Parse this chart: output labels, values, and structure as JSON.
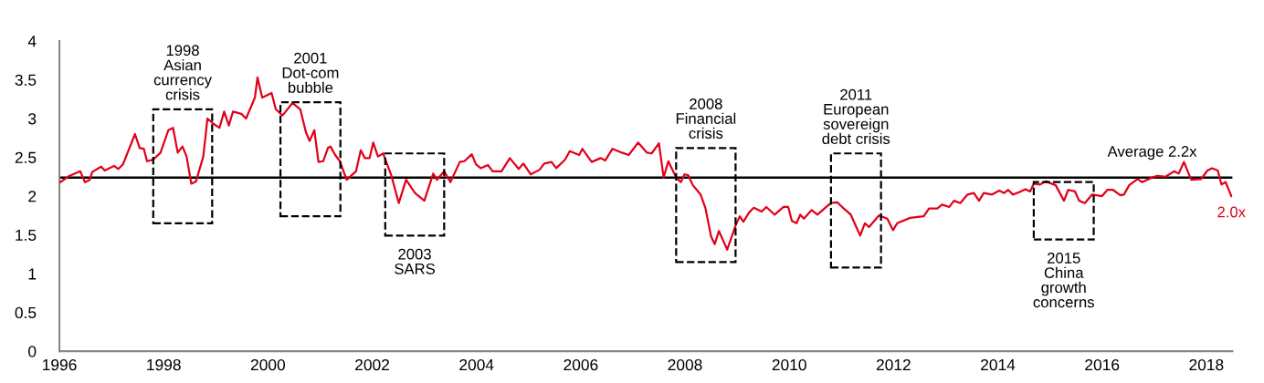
{
  "chart_data": {
    "type": "line",
    "x": [
      1996.02,
      1996.19,
      1996.4,
      1996.49,
      1996.58,
      1996.63,
      1996.8,
      1996.87,
      1997.05,
      1997.13,
      1997.22,
      1997.45,
      1997.54,
      1997.62,
      1997.68,
      1997.8,
      1997.94,
      1998.09,
      1998.18,
      1998.27,
      1998.36,
      1998.44,
      1998.53,
      1998.62,
      1998.76,
      1998.84,
      1998.98,
      1999.07,
      1999.16,
      1999.25,
      1999.33,
      1999.49,
      1999.58,
      1999.75,
      1999.8,
      1999.89,
      2000.07,
      2000.15,
      2000.28,
      2000.47,
      2000.62,
      2000.73,
      2000.8,
      2000.89,
      2000.97,
      2001.06,
      2001.15,
      2001.2,
      2001.29,
      2001.38,
      2001.51,
      2001.69,
      2001.78,
      2001.86,
      2001.95,
      2002.02,
      2002.11,
      2002.21,
      2002.37,
      2002.51,
      2002.65,
      2002.82,
      2003.0,
      2003.17,
      2003.24,
      2003.38,
      2003.5,
      2003.68,
      2003.77,
      2003.91,
      2003.99,
      2004.08,
      2004.22,
      2004.31,
      2004.48,
      2004.64,
      2004.81,
      2004.9,
      2005.04,
      2005.21,
      2005.3,
      2005.44,
      2005.53,
      2005.7,
      2005.79,
      2005.97,
      2006.03,
      2006.21,
      2006.38,
      2006.47,
      2006.61,
      2006.79,
      2006.92,
      2007.1,
      2007.27,
      2007.36,
      2007.5,
      2007.59,
      2007.68,
      2007.83,
      2007.92,
      2007.99,
      2008.06,
      2008.15,
      2008.3,
      2008.39,
      2008.5,
      2008.57,
      2008.65,
      2008.81,
      2008.97,
      2009.05,
      2009.12,
      2009.23,
      2009.32,
      2009.47,
      2009.56,
      2009.72,
      2009.89,
      2009.98,
      2010.05,
      2010.14,
      2010.21,
      2010.28,
      2010.43,
      2010.54,
      2010.71,
      2010.8,
      2010.92,
      2011.03,
      2011.18,
      2011.36,
      2011.45,
      2011.53,
      2011.72,
      2011.88,
      2011.99,
      2012.07,
      2012.32,
      2012.58,
      2012.68,
      2012.84,
      2012.93,
      2013.07,
      2013.16,
      2013.28,
      2013.42,
      2013.54,
      2013.64,
      2013.73,
      2013.89,
      2014.03,
      2014.12,
      2014.2,
      2014.29,
      2014.41,
      2014.53,
      2014.62,
      2014.69,
      2014.81,
      2014.92,
      2015.11,
      2015.27,
      2015.35,
      2015.48,
      2015.56,
      2015.67,
      2015.81,
      2016.0,
      2016.1,
      2016.21,
      2016.35,
      2016.42,
      2016.52,
      2016.68,
      2016.77,
      2016.96,
      2017.06,
      2017.22,
      2017.38,
      2017.47,
      2017.57,
      2017.71,
      2017.9,
      2018.02,
      2018.11,
      2018.22,
      2018.29,
      2018.37,
      2018.48
    ],
    "series": [
      {
        "color": "#e2001a",
        "values": [
          2.18,
          2.26,
          2.32,
          2.18,
          2.21,
          2.31,
          2.38,
          2.33,
          2.39,
          2.35,
          2.41,
          2.8,
          2.62,
          2.61,
          2.45,
          2.47,
          2.56,
          2.85,
          2.88,
          2.56,
          2.64,
          2.51,
          2.16,
          2.19,
          2.51,
          3.0,
          2.92,
          2.88,
          3.09,
          2.91,
          3.09,
          3.06,
          3.0,
          3.27,
          3.53,
          3.27,
          3.33,
          3.12,
          3.04,
          3.2,
          3.12,
          2.82,
          2.71,
          2.85,
          2.44,
          2.45,
          2.62,
          2.64,
          2.53,
          2.45,
          2.21,
          2.32,
          2.59,
          2.49,
          2.49,
          2.69,
          2.51,
          2.55,
          2.26,
          1.91,
          2.21,
          2.04,
          1.94,
          2.29,
          2.21,
          2.32,
          2.18,
          2.44,
          2.45,
          2.54,
          2.41,
          2.36,
          2.4,
          2.32,
          2.32,
          2.49,
          2.35,
          2.42,
          2.28,
          2.34,
          2.42,
          2.44,
          2.36,
          2.47,
          2.58,
          2.53,
          2.61,
          2.44,
          2.49,
          2.46,
          2.61,
          2.56,
          2.53,
          2.69,
          2.56,
          2.55,
          2.68,
          2.24,
          2.45,
          2.24,
          2.18,
          2.28,
          2.27,
          2.14,
          2.02,
          1.85,
          1.48,
          1.38,
          1.55,
          1.31,
          1.62,
          1.74,
          1.67,
          1.79,
          1.85,
          1.8,
          1.86,
          1.76,
          1.86,
          1.86,
          1.68,
          1.65,
          1.76,
          1.71,
          1.82,
          1.76,
          1.86,
          1.91,
          1.92,
          1.85,
          1.76,
          1.49,
          1.65,
          1.6,
          1.75,
          1.71,
          1.56,
          1.65,
          1.72,
          1.74,
          1.84,
          1.84,
          1.89,
          1.86,
          1.94,
          1.91,
          2.02,
          2.04,
          1.94,
          2.04,
          2.02,
          2.07,
          2.04,
          2.08,
          2.02,
          2.05,
          2.09,
          2.06,
          2.16,
          2.15,
          2.19,
          2.14,
          1.94,
          2.08,
          2.06,
          1.94,
          1.91,
          2.02,
          2.0,
          2.08,
          2.08,
          2.01,
          2.02,
          2.14,
          2.22,
          2.18,
          2.24,
          2.26,
          2.25,
          2.32,
          2.29,
          2.44,
          2.21,
          2.22,
          2.33,
          2.36,
          2.33,
          2.15,
          2.18,
          2.0
        ],
        "value_labels": [
          null,
          null,
          null,
          null,
          null,
          null,
          null,
          null,
          null,
          null,
          null,
          null,
          null,
          null,
          null,
          null,
          null,
          null,
          null,
          null,
          null,
          null,
          null,
          null,
          null,
          null,
          null,
          null,
          null,
          null,
          null,
          null,
          null,
          null,
          null,
          null,
          null,
          null,
          null,
          null,
          null,
          null,
          null,
          null,
          null,
          null,
          null,
          null,
          null,
          null,
          null,
          null,
          null,
          null,
          null,
          null,
          null,
          null,
          null,
          null,
          null,
          null,
          null,
          null,
          null,
          null,
          null,
          null,
          null,
          null,
          null,
          null,
          null,
          null,
          null,
          null,
          null,
          null,
          null,
          null,
          null,
          null,
          null,
          null,
          null,
          null,
          null,
          null,
          null,
          null,
          null,
          null,
          null,
          null,
          null,
          null,
          null,
          null,
          null,
          null,
          null,
          null,
          null,
          null,
          null,
          null,
          null,
          null,
          null,
          null,
          null,
          null,
          null,
          null,
          null,
          null,
          null,
          null,
          null,
          null,
          null,
          null,
          null,
          null,
          null,
          null,
          null,
          null,
          null,
          null,
          null,
          null,
          null,
          null,
          null,
          null,
          null,
          null,
          null,
          null,
          null,
          null,
          null,
          null,
          null,
          null,
          null,
          null,
          null,
          null,
          null,
          null,
          null,
          null,
          null,
          null,
          null,
          null,
          null,
          null,
          null,
          null,
          null,
          null,
          null,
          null,
          null,
          null,
          null,
          null,
          null,
          null,
          null,
          null,
          null,
          null,
          null,
          null,
          null,
          null,
          null,
          null,
          null,
          null,
          null,
          null,
          null,
          null,
          null,
          "2.0x"
        ]
      }
    ],
    "xlim": [
      1996,
      2018.5
    ],
    "xticks": [
      1996,
      1998,
      2000,
      2002,
      2004,
      2006,
      2008,
      2010,
      2012,
      2014,
      2016,
      2018
    ],
    "ylim": [
      0,
      4
    ],
    "yticks": [
      0,
      0.5,
      1,
      1.5,
      2,
      2.5,
      3,
      3.5,
      4
    ],
    "grid": false,
    "legend": false,
    "marker": "none",
    "line_style": "solid",
    "ref_lines": [
      {
        "axis": "y",
        "value": 2.24,
        "label": "Average 2.2x",
        "color": "#000000",
        "line_style": "solid"
      }
    ],
    "annotations": [
      "1998\nAsian\ncurrency\ncrisis",
      "2001\nDot-com\nbubble",
      "2003\nSARS",
      "2008\nFinancial\ncrisis",
      "2011\nEuropean\nsovereign\ndebt crisis",
      "2015\nChina\ngrowth\nconcerns"
    ]
  }
}
